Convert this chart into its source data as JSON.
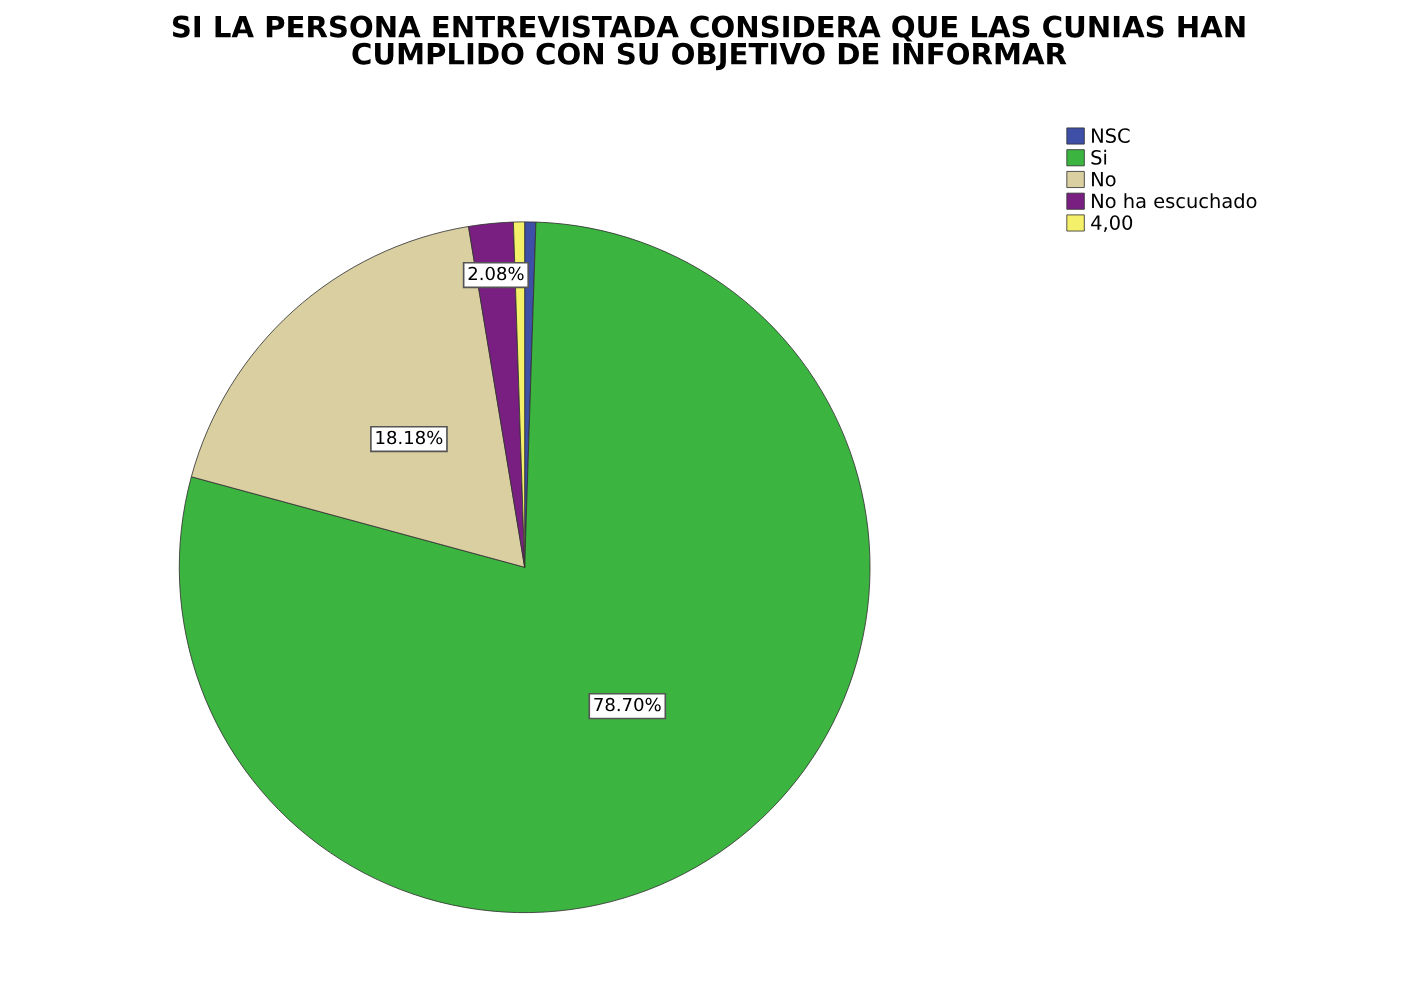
{
  "chart_data": {
    "type": "pie",
    "title": "SI LA PERSONA ENTREVISTADA CONSIDERA QUE LAS CUNIAS HAN\nCUMPLIDO CON SU OBJETIVO DE INFORMAR",
    "categories": [
      "NSC",
      "Si",
      "No",
      "No ha escuchado",
      "4,00"
    ],
    "values": [
      0.52,
      78.7,
      18.18,
      2.08,
      0.52
    ],
    "colors": [
      "#3e4fa8",
      "#3cb540",
      "#d9cfa0",
      "#7a1f82",
      "#f5f06a"
    ],
    "value_labels": [
      null,
      "78.70%",
      "18.18%",
      "2.08%",
      null
    ],
    "legend": "top right"
  }
}
